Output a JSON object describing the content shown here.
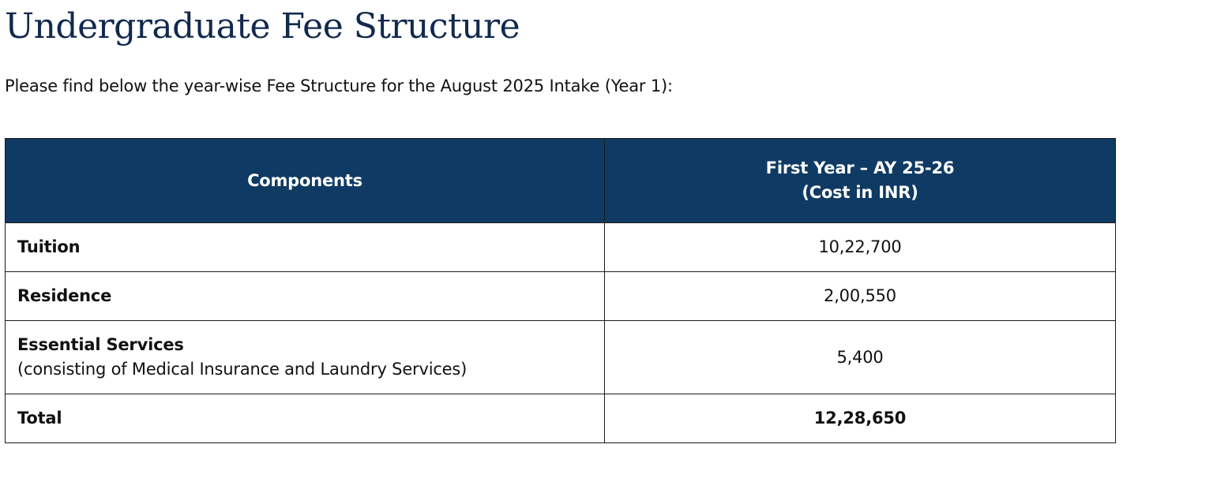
{
  "page": {
    "title": "Undergraduate Fee Structure",
    "intro": "Please find below the year-wise Fee Structure for the August 2025 Intake (Year 1):"
  },
  "table": {
    "header": {
      "components": "Components",
      "year_line1": "First Year – AY 25-26",
      "year_line2": "(Cost in INR)"
    },
    "rows": [
      {
        "label": "Tuition",
        "note": "",
        "value": "10,22,700"
      },
      {
        "label": "Residence",
        "note": "",
        "value": "2,00,550"
      },
      {
        "label": "Essential Services",
        "note": "(consisting of Medical Insurance and Laundry Services)",
        "value": "5,400"
      }
    ],
    "total": {
      "label": "Total",
      "value": "12,28,650"
    }
  },
  "colors": {
    "title": "#11294d",
    "header_bg": "#0f3a63",
    "header_text": "#ffffff",
    "border": "#1a1a1a"
  }
}
